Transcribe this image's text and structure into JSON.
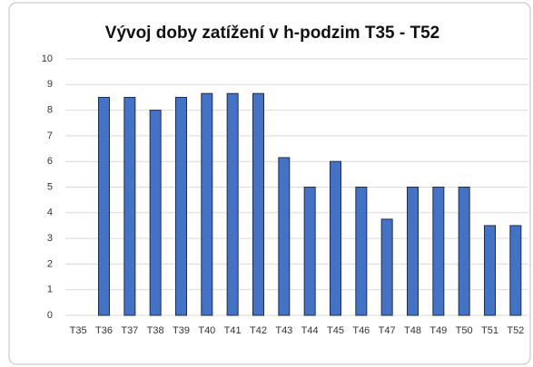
{
  "chart_data": {
    "type": "bar",
    "title": "Vývoj doby zatížení v h-podzim  T35 - T52",
    "categories": [
      "T35",
      "T36",
      "T37",
      "T38",
      "T39",
      "T40",
      "T41",
      "T42",
      "T43",
      "T44",
      "T45",
      "T46",
      "T47",
      "T48",
      "T49",
      "T50",
      "T51",
      "T52"
    ],
    "values": [
      null,
      8.5,
      8.5,
      8,
      8.5,
      8.65,
      8.65,
      8.65,
      6.15,
      5,
      6,
      5,
      3.75,
      5,
      5,
      5,
      3.5,
      3.5
    ],
    "color": "#4472c4",
    "ylim": [
      0,
      10
    ],
    "yticks": [
      0,
      1,
      2,
      3,
      4,
      5,
      6,
      7,
      8,
      9,
      10
    ],
    "grid": true
  }
}
